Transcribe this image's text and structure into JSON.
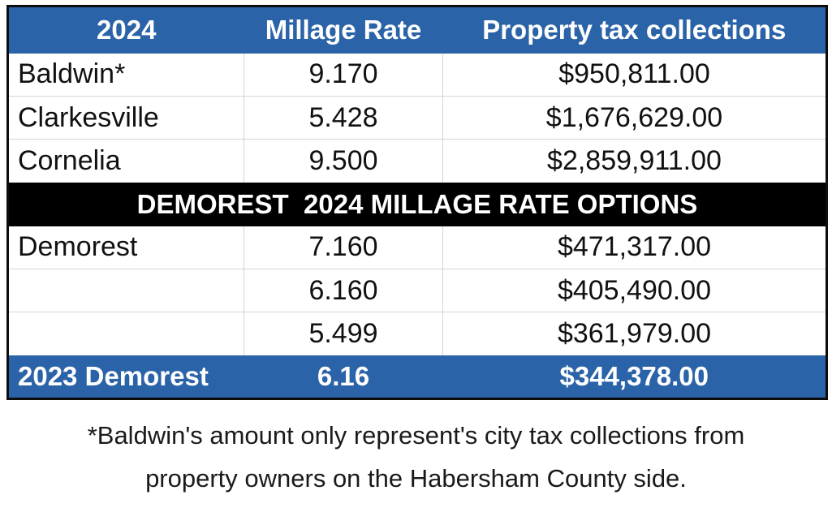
{
  "header": {
    "year": "2024",
    "millage_rate": "Millage Rate",
    "collections": "Property tax collections"
  },
  "rows": [
    {
      "city": "Baldwin*",
      "rate": "9.170",
      "collections": "$950,811.00"
    },
    {
      "city": "Clarkesville",
      "rate": "5.428",
      "collections": "$1,676,629.00"
    },
    {
      "city": "Cornelia",
      "rate": "9.500",
      "collections": "$2,859,911.00"
    }
  ],
  "section_title": "DEMOREST  2024 MILLAGE RATE OPTIONS",
  "demorest_rows": [
    {
      "city": "Demorest",
      "rate": "7.160",
      "collections": "$471,317.00"
    },
    {
      "city": "",
      "rate": "6.160",
      "collections": "$405,490.00"
    },
    {
      "city": "",
      "rate": "5.499",
      "collections": "$361,979.00"
    }
  ],
  "footer_row": {
    "city": "2023 Demorest",
    "rate": "6.16",
    "collections": "$344,378.00"
  },
  "footnote": {
    "line1": "*Baldwin's amount only represent's city tax collections from",
    "line2": "property owners on the Habersham County side."
  },
  "colors": {
    "header_blue": "#2b63a8",
    "section_black": "#000000"
  }
}
